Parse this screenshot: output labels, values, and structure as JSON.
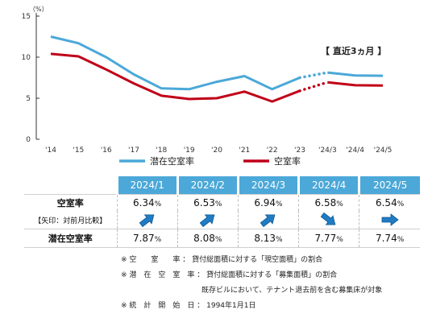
{
  "chart_data": {
    "type": "line",
    "unit_label": "（%）",
    "x": [
      "'14",
      "'15",
      "'16",
      "'17",
      "'18",
      "'19",
      "'20",
      "'21",
      "'22",
      "'23",
      "'24/3",
      "'24/4",
      "'24/5"
    ],
    "ylim": [
      0,
      15
    ],
    "yticks": [
      0,
      5,
      10,
      15
    ],
    "recent_label": "【 直近3ヵ月 】",
    "series": [
      {
        "name": "潜在空室率",
        "color": "#4ba8d8",
        "values": [
          12.5,
          11.7,
          10.0,
          7.9,
          6.2,
          6.1,
          7.0,
          7.7,
          6.1,
          7.5,
          8.13,
          7.77,
          7.74
        ]
      },
      {
        "name": "空室率",
        "color": "#c00018",
        "values": [
          10.4,
          10.1,
          8.5,
          6.8,
          5.3,
          4.9,
          5.0,
          5.8,
          4.6,
          5.9,
          6.94,
          6.58,
          6.54
        ]
      }
    ]
  },
  "table": {
    "months": [
      "2024/1",
      "2024/2",
      "2024/3",
      "2024/4",
      "2024/5"
    ],
    "vacancy_label": "空室率",
    "arrow_label": "【矢印：対前月比較】",
    "potential_label": "潜在空室率",
    "vacancy": [
      "6.34",
      "6.53",
      "6.94",
      "6.58",
      "6.54"
    ],
    "potential": [
      "7.87",
      "8.08",
      "8.13",
      "7.77",
      "7.74"
    ],
    "pct": "%",
    "arrows": [
      "up-right",
      "up-right",
      "up-right",
      "down-right",
      "right"
    ]
  },
  "notes": [
    "※ 空　　室　　率 ： 貸付総面積に対する「現空面積」の割合",
    "※ 潜　在　空　室　率 ： 貸付総面積に対する「募集面積」の割合",
    "既存ビルにおいて、テナント退去前を含む募集床が対象",
    "※ 統　計　開　始　日 ： 1994年1月1日"
  ]
}
